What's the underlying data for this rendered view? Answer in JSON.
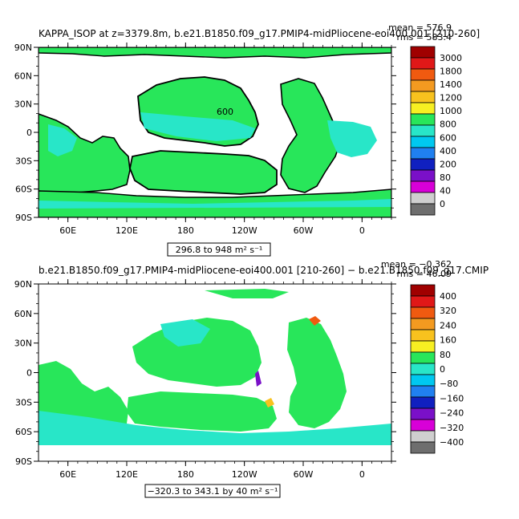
{
  "chart_data": [
    {
      "type": "heatmap",
      "title": "KAPPA_ISOP at z=3379.8m, b.e21.B1850.f09_g17.PMIP4-midPliocene-eoi400.001 [210-260]",
      "stats": {
        "mean": "mean = 576.9",
        "rms": "rms = 583.4"
      },
      "range_label": "296.8 to 948 m² s⁻¹",
      "inline_label": "600",
      "x_ticks": [
        "60E",
        "120E",
        "180",
        "120W",
        "60W",
        "0"
      ],
      "y_ticks": [
        "90N",
        "60N",
        "30N",
        "0",
        "30S",
        "60S",
        "90S"
      ],
      "colorbar": {
        "labels": [
          "3000",
          "1800",
          "1400",
          "1200",
          "1000",
          "800",
          "600",
          "400",
          "200",
          "80",
          "40",
          "0"
        ],
        "colors": [
          "#a00000",
          "#e01818",
          "#f05a10",
          "#f39a20",
          "#f8c21e",
          "#f7ef22",
          "#28e65a",
          "#28e6c8",
          "#00c8f0",
          "#2080f0",
          "#1020c0",
          "#7a10c8",
          "#d800d8",
          "#cfcfcf",
          "#6e6e6e"
        ]
      },
      "field_values": {
        "ocean_dominant": 600,
        "equatorial_band": 450,
        "land": null
      }
    },
    {
      "type": "heatmap",
      "title": "b.e21.B1850.f09_g17.PMIP4-midPliocene-eoi400.001 [210-260] − b.e21.B1850.f09_g17.CMIP",
      "stats": {
        "mean": "mean = −0.362",
        "rms": "rms = 46.09"
      },
      "range_label": "−320.3 to 343.1 by 40 m² s⁻¹",
      "x_ticks": [
        "60E",
        "120E",
        "180",
        "120W",
        "60W",
        "0"
      ],
      "y_ticks": [
        "90N",
        "60N",
        "30N",
        "0",
        "30S",
        "60S",
        "90S"
      ],
      "colorbar": {
        "labels": [
          "400",
          "320",
          "240",
          "160",
          "80",
          "0",
          "−80",
          "−160",
          "−240",
          "−320",
          "−400"
        ],
        "colors": [
          "#a00000",
          "#e01818",
          "#f05a10",
          "#f39a20",
          "#f8c21e",
          "#f7ef22",
          "#28e65a",
          "#28e6c8",
          "#00c8f0",
          "#2080f0",
          "#1020c0",
          "#7a10c8",
          "#d800d8",
          "#cfcfcf",
          "#6e6e6e"
        ]
      },
      "field_values": {
        "ocean_dominant": 20,
        "southern_ocean": -40,
        "land": null
      }
    }
  ]
}
